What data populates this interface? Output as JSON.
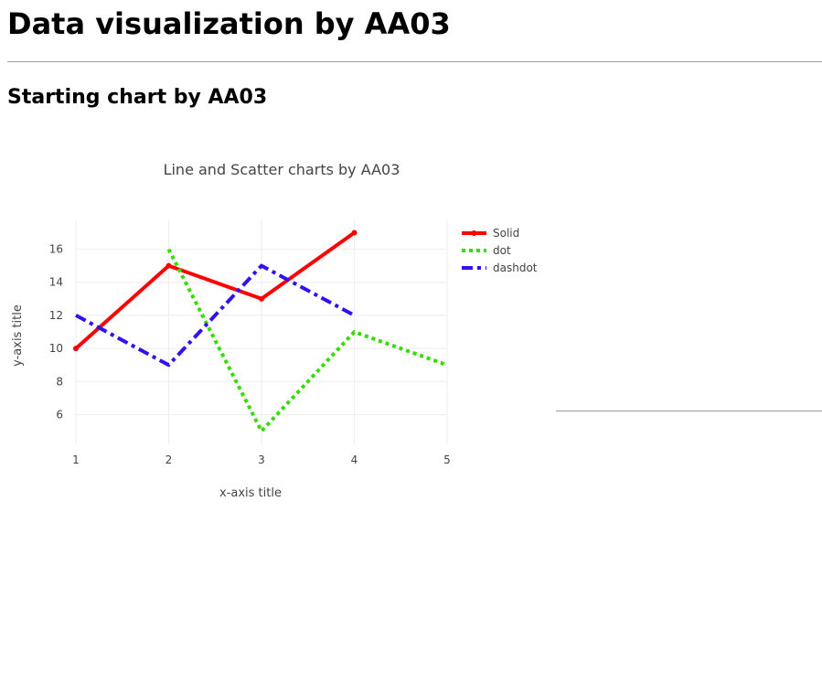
{
  "page": {
    "title": "Data visualization by AA03",
    "section_title": "Starting chart by AA03"
  },
  "chart_data": {
    "type": "line",
    "title": "Line and Scatter charts by AA03",
    "xlabel": "x-axis title",
    "ylabel": "y-axis title",
    "xlim": [
      1,
      5
    ],
    "ylim": [
      4.2,
      17.8
    ],
    "xticks": [
      1,
      2,
      3,
      4,
      5
    ],
    "yticks": [
      6,
      8,
      10,
      12,
      14,
      16
    ],
    "grid": true,
    "legend_position": "top-right",
    "series": [
      {
        "name": "Solid",
        "x": [
          1,
          2,
          3,
          4
        ],
        "y": [
          10,
          15,
          13,
          17
        ],
        "color": "#ff0000",
        "dash": "solid",
        "markers": true
      },
      {
        "name": "dot",
        "x": [
          2,
          3,
          4,
          5
        ],
        "y": [
          16,
          5,
          11,
          9
        ],
        "color": "#33dd00",
        "dash": "dot",
        "markers": false
      },
      {
        "name": "dashdot",
        "x": [
          1,
          2,
          3,
          4
        ],
        "y": [
          12,
          9,
          15,
          12
        ],
        "color": "#3311ee",
        "dash": "dashdot",
        "markers": false
      }
    ]
  }
}
